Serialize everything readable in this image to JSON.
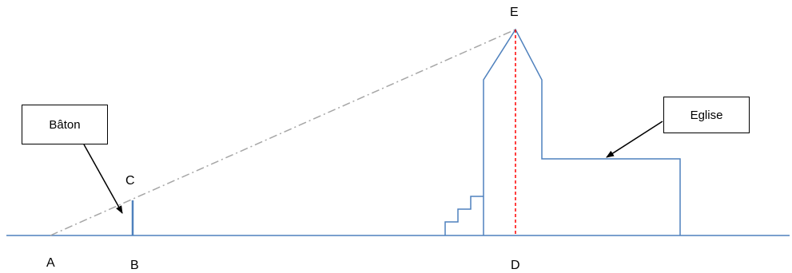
{
  "points": {
    "A": "A",
    "B": "B",
    "C": "C",
    "D": "D",
    "E": "E"
  },
  "callouts": {
    "baton": "Bâton",
    "eglise": "Eglise"
  },
  "colors": {
    "structure": "#4f81bd",
    "sightline": "#a6a6a6",
    "axis": "#ff0000",
    "callout": "#000000"
  }
}
